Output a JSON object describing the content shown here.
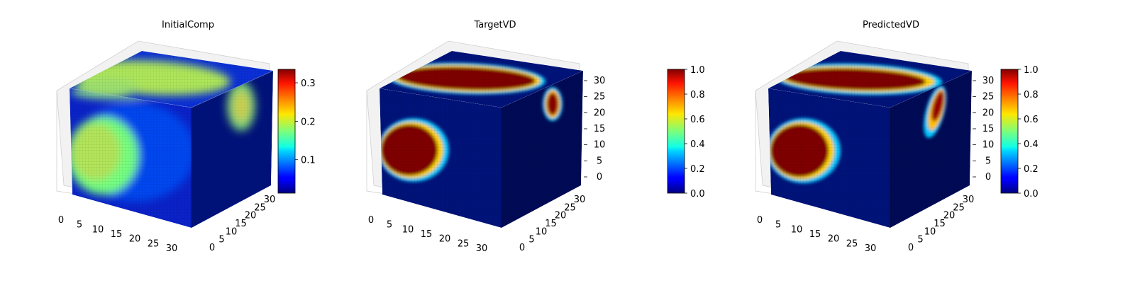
{
  "chart_data": [
    {
      "type": "heatmap",
      "title": "InitialComp",
      "axis_ticks": {
        "x": [
          "0",
          "5",
          "10",
          "15",
          "20",
          "25",
          "30"
        ],
        "y": [
          "0",
          "5",
          "10",
          "15",
          "20",
          "25",
          "30"
        ]
      },
      "colorbar": {
        "colormap": "jet",
        "range": [
          0.013,
          0.335
        ],
        "ticks": [
          "0.1",
          "0.2",
          "0.3"
        ],
        "tick_values": [
          0.1,
          0.2,
          0.3
        ]
      },
      "value_range": [
        0.013,
        0.335
      ]
    },
    {
      "type": "heatmap",
      "title": "TargetVD",
      "axis_ticks": {
        "x": [
          "0",
          "5",
          "10",
          "15",
          "20",
          "25",
          "30"
        ],
        "y": [
          "0",
          "5",
          "10",
          "15",
          "20",
          "25",
          "30"
        ],
        "z": [
          "0",
          "5",
          "10",
          "15",
          "20",
          "25",
          "30"
        ]
      },
      "colorbar": {
        "colormap": "jet",
        "range": [
          0.0,
          1.0
        ],
        "ticks": [
          "0.0",
          "0.2",
          "0.4",
          "0.6",
          "0.8",
          "1.0"
        ],
        "tick_values": [
          0.0,
          0.2,
          0.4,
          0.6,
          0.8,
          1.0
        ]
      },
      "value_range": [
        0.0,
        1.0
      ]
    },
    {
      "type": "heatmap",
      "title": "PredictedVD",
      "axis_ticks": {
        "x": [
          "0",
          "5",
          "10",
          "15",
          "20",
          "25",
          "30"
        ],
        "y": [
          "0",
          "5",
          "10",
          "15",
          "20",
          "25",
          "30"
        ],
        "z": [
          "0",
          "5",
          "10",
          "15",
          "20",
          "25",
          "30"
        ]
      },
      "colorbar": {
        "colormap": "jet",
        "range": [
          0.0,
          1.0
        ],
        "ticks": [
          "0.0",
          "0.2",
          "0.4",
          "0.6",
          "0.8",
          "1.0"
        ],
        "tick_values": [
          0.0,
          0.2,
          0.4,
          0.6,
          0.8,
          1.0
        ]
      },
      "value_range": [
        0.0,
        1.0
      ]
    }
  ]
}
